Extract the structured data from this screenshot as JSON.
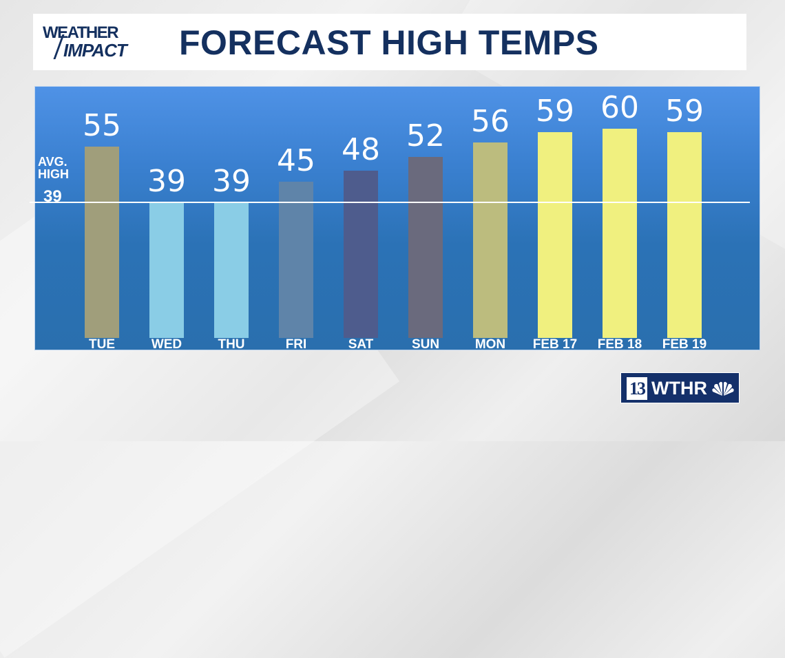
{
  "header": {
    "logo_line1": "WEATHER",
    "logo_line2": "IMPACT",
    "title": "FORECAST HIGH TEMPS"
  },
  "average": {
    "label_line1": "AVG.",
    "label_line2": "HIGH",
    "value": "39"
  },
  "brand": {
    "channel_number": "13",
    "call_sign": "WTHR",
    "network_icon": "nbc-peacock-icon"
  },
  "colors": {
    "header_text": "#14305f",
    "panel_top": "#4f92e6",
    "panel_bottom": "#2a6fae",
    "avg_line": "#ffffff"
  },
  "chart_data": {
    "type": "bar",
    "title": "FORECAST HIGH TEMPS",
    "xlabel": "",
    "ylabel": "",
    "categories": [
      "TUE",
      "WED",
      "THU",
      "FRI",
      "SAT",
      "SUN",
      "MON",
      "FEB 17",
      "FEB 18",
      "FEB 19"
    ],
    "values": [
      55,
      39,
      39,
      45,
      48,
      52,
      56,
      59,
      60,
      59
    ],
    "value_labels": [
      "55",
      "39",
      "39",
      "45",
      "48",
      "52",
      "56",
      "59",
      "60",
      "59"
    ],
    "bar_colors": [
      "#a09e7b",
      "#8acde6",
      "#8acde6",
      "#5f84a9",
      "#4e5c8d",
      "#6a6a7d",
      "#bcbc7e",
      "#f0f07f",
      "#f0f07f",
      "#f0f07f"
    ],
    "reference_line": {
      "label": "AVG. HIGH",
      "value": 39
    },
    "ylim": [
      0,
      72
    ],
    "grid": false,
    "legend": "none"
  }
}
